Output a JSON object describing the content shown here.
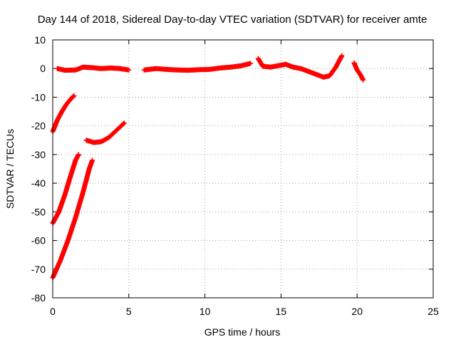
{
  "chart_data": {
    "type": "scatter",
    "title": "Day 144 of 2018, Sidereal Day-to-day VTEC variation (SDTVAR) for receiver amte",
    "xlabel": "GPS time / hours",
    "ylabel": "SDTVAR / TECUs",
    "xlim": [
      0,
      25
    ],
    "ylim": [
      -80,
      10
    ],
    "xticks": [
      0,
      5,
      10,
      15,
      20,
      25
    ],
    "yticks": [
      10,
      0,
      -10,
      -20,
      -30,
      -40,
      -50,
      -60,
      -70,
      -80
    ],
    "grid": true,
    "marker": "plus",
    "color": "#ff0000",
    "series": [
      {
        "name": "near-zero arc 1",
        "points": [
          [
            0.3,
            0.0
          ],
          [
            0.8,
            -0.6
          ],
          [
            1.5,
            -0.5
          ],
          [
            2.0,
            0.5
          ],
          [
            2.6,
            0.3
          ],
          [
            3.2,
            0.0
          ],
          [
            3.8,
            0.2
          ],
          [
            4.4,
            0.0
          ],
          [
            5.0,
            -0.5
          ]
        ]
      },
      {
        "name": "near-zero arc 2",
        "points": [
          [
            6.0,
            -0.5
          ],
          [
            6.8,
            0.0
          ],
          [
            7.5,
            -0.3
          ],
          [
            8.2,
            -0.5
          ],
          [
            8.9,
            -0.6
          ],
          [
            9.6,
            -0.4
          ],
          [
            10.3,
            -0.3
          ],
          [
            11.0,
            0.2
          ],
          [
            11.7,
            0.5
          ],
          [
            12.4,
            1.0
          ],
          [
            13.0,
            1.8
          ]
        ]
      },
      {
        "name": "near-zero arc 3",
        "points": [
          [
            13.5,
            3.5
          ],
          [
            13.8,
            0.8
          ],
          [
            14.3,
            0.5
          ],
          [
            14.8,
            1.0
          ],
          [
            15.3,
            1.5
          ],
          [
            15.8,
            0.5
          ],
          [
            16.3,
            0.0
          ],
          [
            16.8,
            -1.0
          ],
          [
            17.3,
            -2.0
          ],
          [
            17.8,
            -3.0
          ],
          [
            18.2,
            -2.5
          ],
          [
            18.6,
            0.5
          ],
          [
            19.0,
            4.5
          ]
        ]
      },
      {
        "name": "near-zero arc 4",
        "points": [
          [
            19.8,
            2.0
          ],
          [
            20.0,
            -0.5
          ],
          [
            20.2,
            -2.0
          ],
          [
            20.4,
            -4.0
          ]
        ]
      },
      {
        "name": "low arc 1",
        "points": [
          [
            0.0,
            -22.0
          ],
          [
            0.3,
            -18.0
          ],
          [
            0.6,
            -15.0
          ],
          [
            0.9,
            -12.5
          ],
          [
            1.2,
            -10.5
          ],
          [
            1.4,
            -9.5
          ]
        ]
      },
      {
        "name": "low arc 2",
        "points": [
          [
            2.2,
            -25.0
          ],
          [
            2.7,
            -25.8
          ],
          [
            3.2,
            -25.5
          ],
          [
            3.7,
            -24.0
          ],
          [
            4.2,
            -21.5
          ],
          [
            4.7,
            -19.0
          ]
        ]
      },
      {
        "name": "low arc 3",
        "points": [
          [
            0.0,
            -54.0
          ],
          [
            0.4,
            -50.0
          ],
          [
            0.8,
            -44.0
          ],
          [
            1.2,
            -37.0
          ],
          [
            1.5,
            -32.0
          ],
          [
            1.7,
            -30.0
          ]
        ]
      },
      {
        "name": "low arc 4",
        "points": [
          [
            0.0,
            -73.0
          ],
          [
            0.5,
            -67.0
          ],
          [
            1.0,
            -60.0
          ],
          [
            1.5,
            -52.0
          ],
          [
            2.0,
            -43.0
          ],
          [
            2.4,
            -35.0
          ],
          [
            2.6,
            -32.0
          ]
        ]
      }
    ]
  }
}
